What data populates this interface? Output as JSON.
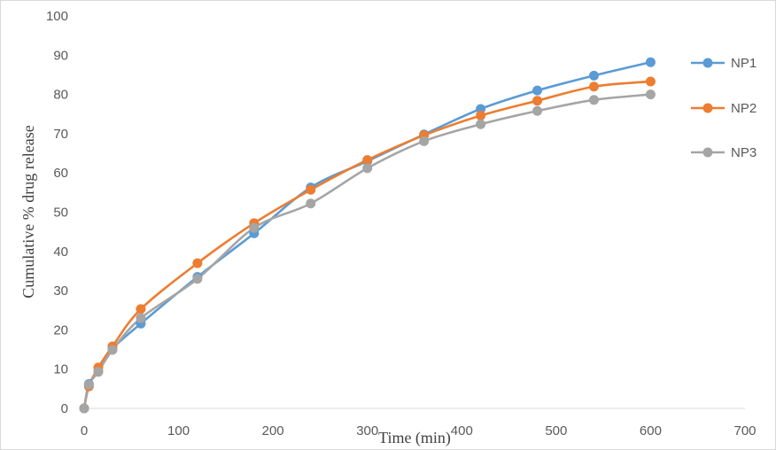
{
  "chart_data": {
    "type": "line",
    "xlabel": "Time (min)",
    "ylabel": "Cumulative % drug release",
    "xlim": [
      0,
      700
    ],
    "ylim": [
      0,
      100
    ],
    "x_ticks": [
      0,
      100,
      200,
      300,
      400,
      500,
      600,
      700
    ],
    "y_ticks": [
      0,
      10,
      20,
      30,
      40,
      50,
      60,
      70,
      80,
      90,
      100
    ],
    "grid": false,
    "legend_position": "right",
    "x": [
      0,
      5,
      15,
      30,
      60,
      120,
      180,
      240,
      300,
      360,
      420,
      480,
      540,
      600
    ],
    "series": [
      {
        "name": "NP1",
        "color": "#5b9bd5",
        "values": [
          0,
          6.2,
          9.5,
          15.2,
          21.6,
          33.5,
          44.6,
          56.3,
          63.0,
          69.8,
          76.3,
          81.0,
          84.8,
          88.2
        ]
      },
      {
        "name": "NP2",
        "color": "#ed7d31",
        "values": [
          0,
          5.6,
          10.4,
          15.8,
          25.3,
          37.0,
          47.2,
          55.7,
          63.3,
          69.6,
          74.6,
          78.4,
          82.0,
          83.3
        ]
      },
      {
        "name": "NP3",
        "color": "#a5a5a5",
        "values": [
          0,
          6.0,
          9.3,
          14.9,
          23.0,
          33.0,
          46.0,
          52.2,
          61.2,
          68.1,
          72.4,
          75.8,
          78.6,
          80.0
        ]
      }
    ]
  }
}
